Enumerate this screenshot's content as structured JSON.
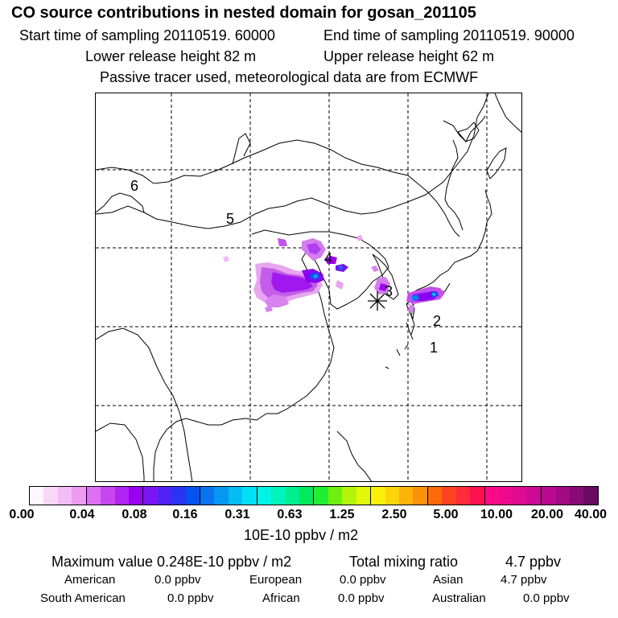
{
  "title": "CO  source contributions in nested domain for gosan_201105",
  "header": {
    "start": "Start time of sampling 20110519. 60000",
    "end": "End time of sampling 20110519. 90000",
    "lower": "Lower release height   82 m",
    "upper": "Upper release height   62 m",
    "tracer": "Passive tracer used, meteorological data are from ECMWF"
  },
  "map": {
    "region_labels": [
      "1",
      "2",
      "3",
      "4",
      "5",
      "6"
    ],
    "receptor": "gosan-receptor-star"
  },
  "colorbar": {
    "colors": [
      "#fff6ff",
      "#f8d8f8",
      "#f4bcf4",
      "#ee9cf2",
      "#dc70f0",
      "#c846ee",
      "#b023f0",
      "#9a00f0",
      "#7a16f4",
      "#5222f4",
      "#2a34f4",
      "#0652ee",
      "#0a74f0",
      "#0898f4",
      "#06bcf4",
      "#00e0f4",
      "#00f4e6",
      "#00f4bc",
      "#00ee92",
      "#00ea5e",
      "#20ee30",
      "#6ef010",
      "#b4f40a",
      "#e0f80a",
      "#fcf00a",
      "#fcd40a",
      "#fcb40a",
      "#fc920a",
      "#fc6a0a",
      "#fc4420",
      "#fc2c3a",
      "#fc1050",
      "#fc0a86",
      "#ee0a8e",
      "#de0a92",
      "#cc0a94",
      "#b80a8e",
      "#a00a82",
      "#880a74",
      "#6a0a60"
    ],
    "ticks": [
      "0.00",
      "0.04",
      "0.08",
      "0.16",
      "0.31",
      "0.63",
      "1.25",
      "2.50",
      "5.00",
      "10.00",
      "20.00",
      "40.00"
    ],
    "unit": "10E-10 ppbv / m2"
  },
  "summary": {
    "max_label": "Maximum value  0.248E-10 ppbv / m2",
    "total_label": "Total mixing ratio",
    "total_value": "4.7 ppbv",
    "american_label": "American",
    "american_value": "0.0 ppbv",
    "european_label": "European",
    "european_value": "0.0 ppbv",
    "asian_label": "Asian",
    "asian_value": "4.7 ppbv",
    "south_american_label": "South American",
    "south_american_value": "0.0 ppbv",
    "african_label": "African",
    "african_value": "0.0 ppbv",
    "australian_label": "Australian",
    "australian_value": "0.0 ppbv"
  }
}
